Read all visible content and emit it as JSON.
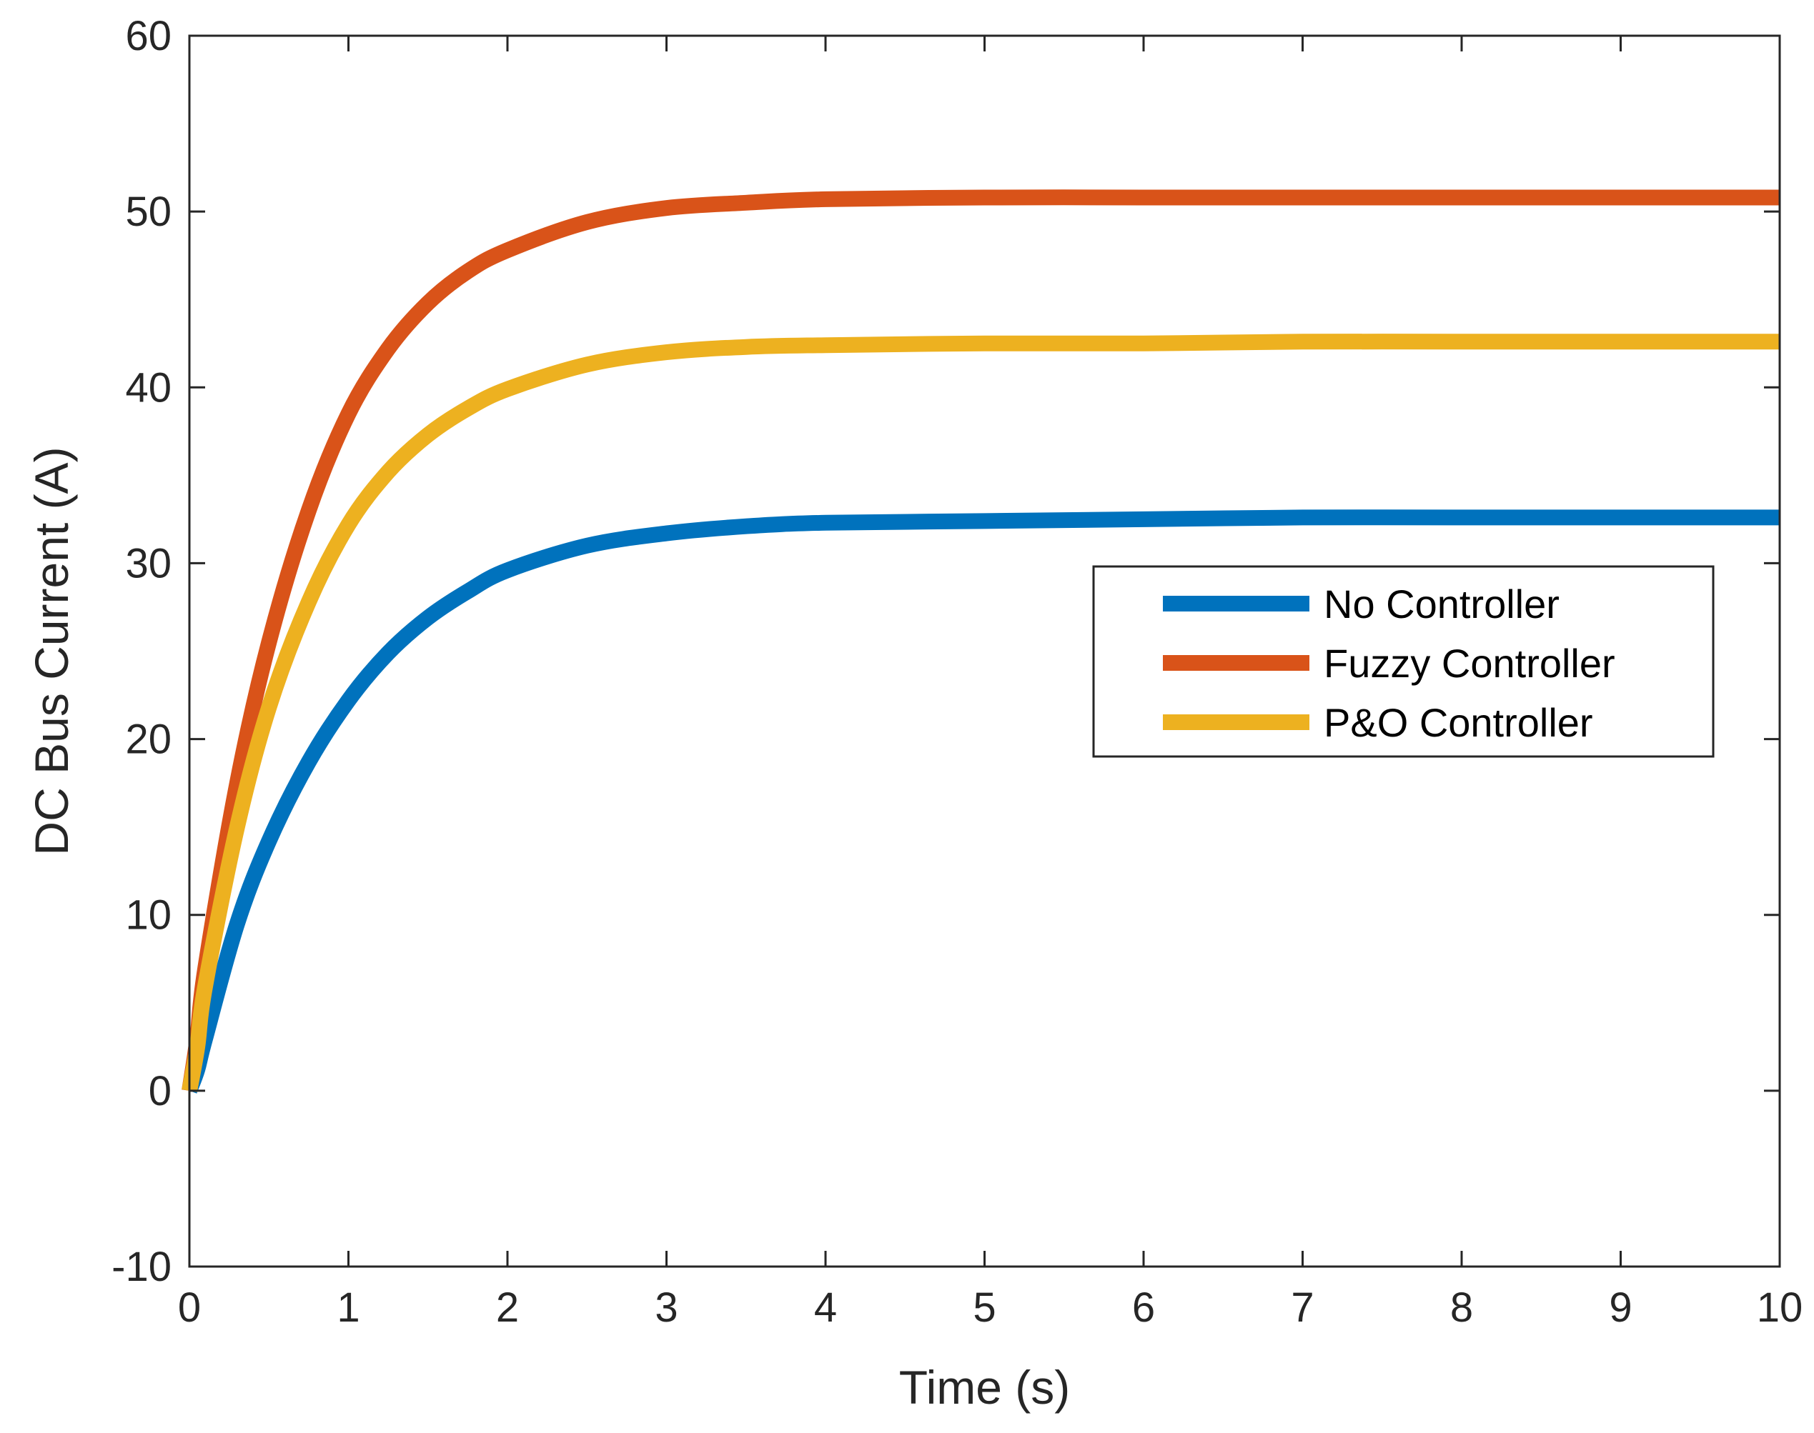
{
  "chart_data": {
    "type": "line",
    "title": "",
    "xlabel": "Time (s)",
    "ylabel": "DC Bus Current (A)",
    "xlim": [
      0,
      10
    ],
    "ylim": [
      -10,
      60
    ],
    "xticks": [
      0,
      1,
      2,
      3,
      4,
      5,
      6,
      7,
      8,
      9,
      10
    ],
    "yticks": [
      -10,
      0,
      10,
      20,
      30,
      40,
      50,
      60
    ],
    "xtick_labels": [
      "0",
      "1",
      "2",
      "3",
      "4",
      "5",
      "6",
      "7",
      "8",
      "9",
      "10"
    ],
    "ytick_labels": [
      "-10",
      "0",
      "10",
      "20",
      "30",
      "40",
      "50",
      "60"
    ],
    "grid": false,
    "legend_position": "right-center",
    "series": [
      {
        "name": "No Controller",
        "color": "#0072BD",
        "x": [
          0,
          0.05,
          0.1,
          0.3,
          0.5,
          0.75,
          1.0,
          1.25,
          1.5,
          1.75,
          2.0,
          2.5,
          3.0,
          3.5,
          4.0,
          5.0,
          6.0,
          7.0,
          8.0,
          9.0,
          10.0
        ],
        "y": [
          0,
          1.2,
          3.0,
          9.5,
          14.2,
          18.7,
          22.2,
          24.9,
          26.9,
          28.4,
          29.6,
          31.0,
          31.7,
          32.1,
          32.3,
          32.4,
          32.5,
          32.6,
          32.6,
          32.6,
          32.6
        ]
      },
      {
        "name": "Fuzzy Controller",
        "color": "#D95319",
        "x": [
          0,
          0.05,
          0.1,
          0.3,
          0.5,
          0.75,
          1.0,
          1.25,
          1.5,
          1.75,
          2.0,
          2.5,
          3.0,
          3.5,
          4.0,
          5.0,
          6.0,
          7.0,
          8.0,
          9.0,
          10.0
        ],
        "y": [
          0,
          3.0,
          7.0,
          17.5,
          25.5,
          33.0,
          38.5,
          42.2,
          44.8,
          46.6,
          47.8,
          49.4,
          50.2,
          50.5,
          50.7,
          50.8,
          50.8,
          50.8,
          50.8,
          50.8,
          50.8
        ]
      },
      {
        "name": "P&O Controller",
        "color": "#EDB120",
        "x": [
          0,
          0.05,
          0.1,
          0.3,
          0.5,
          0.75,
          1.0,
          1.25,
          1.5,
          1.75,
          2.0,
          2.5,
          3.0,
          3.5,
          4.0,
          5.0,
          6.0,
          7.0,
          8.0,
          9.0,
          10.0
        ],
        "y": [
          0,
          2.5,
          6.0,
          15.0,
          21.8,
          27.8,
          32.2,
          35.2,
          37.3,
          38.8,
          39.9,
          41.3,
          42.0,
          42.3,
          42.4,
          42.5,
          42.5,
          42.6,
          42.6,
          42.6,
          42.6
        ]
      }
    ]
  }
}
